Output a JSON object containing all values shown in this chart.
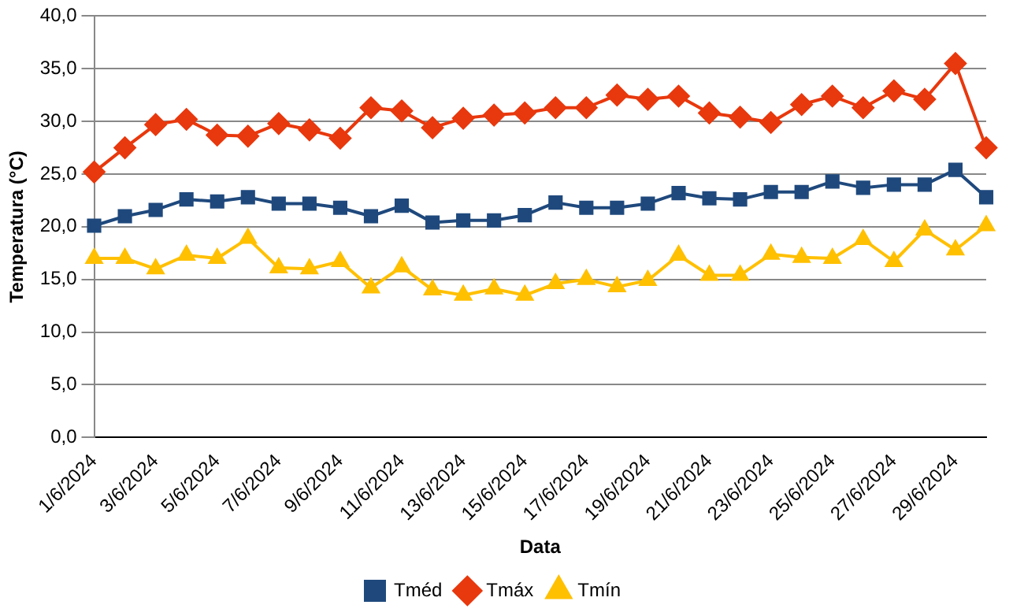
{
  "chart_data": {
    "type": "line",
    "xlabel": "Data",
    "ylabel": "Temperatura (°C)",
    "categories": [
      "1/6/2024",
      null,
      "3/6/2024",
      null,
      "5/6/2024",
      null,
      "7/6/2024",
      null,
      "9/6/2024",
      null,
      "11/6/2024",
      null,
      "13/6/2024",
      null,
      "15/6/2024",
      null,
      "17/6/2024",
      null,
      "19/6/2024",
      null,
      "21/6/2024",
      null,
      "23/6/2024",
      null,
      "25/6/2024",
      null,
      "27/6/2024",
      null,
      "29/6/2024",
      null
    ],
    "series": [
      {
        "name": "Tméd",
        "color": "#1f497d",
        "marker": "square",
        "values": [
          20.1,
          21.0,
          21.6,
          22.6,
          22.4,
          22.8,
          22.2,
          22.2,
          21.8,
          21.0,
          22.0,
          20.4,
          20.6,
          20.6,
          21.1,
          22.3,
          21.8,
          21.8,
          22.2,
          23.2,
          22.7,
          22.6,
          23.3,
          23.3,
          24.3,
          23.7,
          24.0,
          24.0,
          25.4,
          22.8
        ]
      },
      {
        "name": "Tmáx",
        "color": "#e8380d",
        "marker": "diamond",
        "values": [
          25.2,
          27.5,
          29.7,
          30.2,
          28.7,
          28.6,
          29.8,
          29.2,
          28.4,
          31.3,
          31.0,
          29.4,
          30.3,
          30.6,
          30.8,
          31.3,
          31.3,
          32.5,
          32.1,
          32.4,
          30.8,
          30.4,
          29.9,
          31.6,
          32.4,
          31.3,
          32.9,
          32.1,
          35.5,
          27.5
        ]
      },
      {
        "name": "Tmín",
        "color": "#ffc000",
        "marker": "triangle",
        "values": [
          17.0,
          17.0,
          16.0,
          17.3,
          17.0,
          18.9,
          16.1,
          16.0,
          16.7,
          14.2,
          16.2,
          14.0,
          13.5,
          14.1,
          13.5,
          14.6,
          15.0,
          14.3,
          14.9,
          17.3,
          15.4,
          15.4,
          17.4,
          17.1,
          17.0,
          18.8,
          16.7,
          19.7,
          17.8,
          20.1
        ]
      }
    ],
    "ylim": [
      0,
      40
    ],
    "yticks": [
      {
        "value": 0,
        "label": "0,0"
      },
      {
        "value": 5,
        "label": "5,0"
      },
      {
        "value": 10,
        "label": "10,0"
      },
      {
        "value": 15,
        "label": "15,0"
      },
      {
        "value": 20,
        "label": "20,0"
      },
      {
        "value": 25,
        "label": "25,0"
      },
      {
        "value": 30,
        "label": "30,0"
      },
      {
        "value": 35,
        "label": "35,0"
      },
      {
        "value": 40,
        "label": "40,0"
      }
    ],
    "grid": "y",
    "legend": "bottom"
  }
}
